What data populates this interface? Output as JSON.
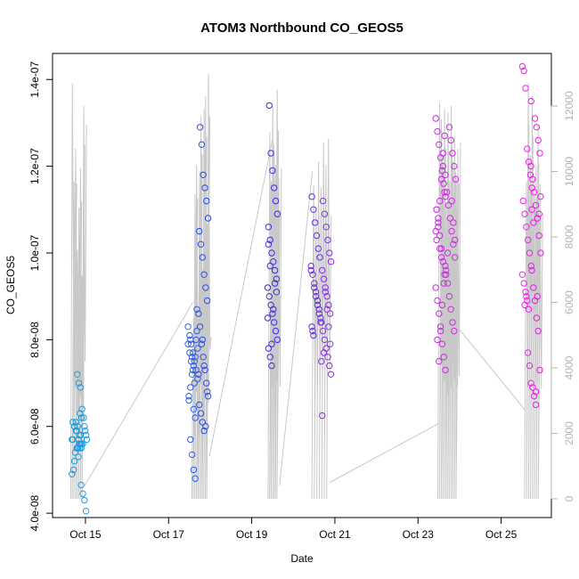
{
  "chart_data": {
    "type": "scatter",
    "title": "ATOM3 Northbound CO_GEOS5",
    "xlabel": "Date",
    "ylabel": "CO_GEOS5",
    "x_ticks": [
      "Oct 15",
      "Oct 17",
      "Oct 19",
      "Oct 21",
      "Oct 23",
      "Oct 25"
    ],
    "y_ticks": [
      "4.0e-08",
      "6.0e-08",
      "8.0e-08",
      "1.0e-07",
      "1.2e-07",
      "1.4e-07"
    ],
    "y2_ticks": [
      "0",
      "2000",
      "4000",
      "6000",
      "8000",
      "10000",
      "12000"
    ],
    "xlim": [
      "2017-10-14T05:00",
      "2017-10-26T05:00"
    ],
    "ylim": [
      3.9e-08,
      1.46e-07
    ],
    "y2lim": [
      0,
      12000
    ],
    "grid": false,
    "series": [
      {
        "marker": "open-circle",
        "points_per_cluster": [
          {
            "date": "2017-10-14T19:00",
            "values": [
              5.7e-08,
              5.8e-08,
              5.6e-08,
              5.5e-08,
              5.9e-08,
              6e-08,
              6.1e-08,
              6.2e-08,
              6.3e-08,
              5.7e-08,
              5.5e-08,
              5.4e-08,
              5e-08,
              4.9e-08,
              5.6e-08,
              5.8e-08,
              6e-08,
              6.1e-08,
              5.2e-08,
              5.7e-08,
              5.6e-08,
              5.5e-08,
              5.3e-08,
              5.9e-08
            ],
            "color": "#1c9ad8"
          },
          {
            "date": "2017-10-14T22:00",
            "values": [
              4.05e-08,
              4.3e-08,
              4.45e-08,
              4.65e-08,
              5.6e-08,
              5.5e-08,
              5.7e-08,
              5.9e-08,
              6.2e-08,
              6.4e-08,
              6.9e-08,
              7e-08,
              7.2e-08,
              5.8e-08,
              6e-08,
              5.6e-08,
              5.5e-08
            ],
            "color": "#239ce3"
          },
          {
            "date": "2017-10-17T14:00",
            "values": [
              4.8e-08,
              5e-08,
              5.35e-08,
              5.7e-08,
              6.7e-08,
              7.1e-08,
              7.3e-08,
              7.5e-08,
              7.7e-08,
              7.9e-08,
              8.1e-08,
              8.3e-08,
              8.7e-08,
              7.6e-08,
              7.4e-08,
              7.2e-08,
              6.9e-08,
              6.6e-08,
              7.8e-08,
              8e-08,
              7e-08,
              7.3e-08,
              7.5e-08,
              7.7e-08,
              7.9e-08,
              8.2e-08,
              6.2e-08,
              6.4e-08,
              7.6e-08,
              8e-08
            ],
            "color": "#2f5fe8"
          },
          {
            "date": "2017-10-17T20:00",
            "values": [
              5.9e-08,
              6.1e-08,
              6.3e-08,
              6.5e-08,
              6.7e-08,
              7e-08,
              7.3e-08,
              7.6e-08,
              7.9e-08,
              8.3e-08,
              8.6e-08,
              8.9e-08,
              9.2e-08,
              9.5e-08,
              9.9e-08,
              1.02e-07,
              1.05e-07,
              1.08e-07,
              1.12e-07,
              1.15e-07,
              1.18e-07,
              1.25e-07,
              1.29e-07,
              7.2e-08,
              6.8e-08,
              6e-08,
              7.4e-08,
              8e-08
            ],
            "color": "#2a4ee6"
          },
          {
            "date": "2017-10-19T12:00",
            "values": [
              7.4e-08,
              7.6e-08,
              7.8e-08,
              8e-08,
              8.2e-08,
              8.4e-08,
              8.6e-08,
              8.8e-08,
              9e-08,
              9.2e-08,
              9.4e-08,
              9.6e-08,
              9.8e-08,
              1e-07,
              1.03e-07,
              1.06e-07,
              1.09e-07,
              1.12e-07,
              1.15e-07,
              1.19e-07,
              1.23e-07,
              1.34e-07,
              8.5e-08,
              9.1e-08,
              9.3e-08,
              8.7e-08,
              7.9e-08,
              9.7e-08,
              1.02e-07
            ],
            "color": "#3b2fe0"
          },
          {
            "date": "2017-10-20T13:00",
            "values": [
              8.1e-08,
              8.3e-08,
              8.5e-08,
              8.7e-08,
              8.9e-08,
              9.1e-08,
              9.3e-08,
              9.5e-08,
              9.7e-08,
              9.9e-08,
              1.01e-07,
              1.04e-07,
              1.07e-07,
              1.1e-07,
              1.13e-07,
              8.4e-08,
              8.6e-08,
              8.8e-08,
              9e-08,
              9.2e-08,
              8.2e-08,
              9.6e-08
            ],
            "color": "#6a2fe0"
          },
          {
            "date": "2017-10-20T19:00",
            "values": [
              6.25e-08,
              7.2e-08,
              7.4e-08,
              7.6e-08,
              7.8e-08,
              8e-08,
              8.2e-08,
              8.4e-08,
              8.6e-08,
              8.8e-08,
              9e-08,
              9.2e-08,
              9.4e-08,
              9.6e-08,
              9.8e-08,
              1e-07,
              1.03e-07,
              1.06e-07,
              1.09e-07,
              1.12e-07,
              7.5e-08,
              7.9e-08,
              8.3e-08,
              8.7e-08,
              9.1e-08,
              7.7e-08
            ],
            "color": "#8b2ee3"
          },
          {
            "date": "2017-10-23T13:00",
            "values": [
              7.3e-08,
              7.6e-08,
              7.9e-08,
              8.2e-08,
              8.6e-08,
              8.9e-08,
              9.2e-08,
              9.5e-08,
              9.8e-08,
              1.01e-07,
              1.04e-07,
              1.07e-07,
              1.1e-07,
              1.13e-07,
              1.16e-07,
              1.19e-07,
              1.22e-07,
              1.25e-07,
              1.28e-07,
              1.31e-07,
              1.27e-07,
              1.23e-07,
              1.17e-07,
              1.12e-07,
              1.08e-07,
              1.03e-07,
              9.7e-08,
              9.3e-08,
              8.8e-08,
              8.3e-08,
              7.5e-08,
              8e-08,
              1.05e-07,
              1.14e-07,
              1.2e-07,
              9.9e-08,
              1.01e-07,
              1.06e-07,
              1.1e-07,
              1.18e-07
            ],
            "color": "#c82ce0"
          },
          {
            "date": "2017-10-23T19:00",
            "values": [
              8.2e-08,
              8.4e-08,
              8.7e-08,
              9e-08,
              9.3e-08,
              9.6e-08,
              9.9e-08,
              1.02e-07,
              1.05e-07,
              1.08e-07,
              1.11e-07,
              1.14e-07,
              1.17e-07,
              1.2e-07,
              1.23e-07,
              1.26e-07,
              1.29e-07,
              1e-07,
              9.5e-08,
              1.03e-07,
              1.07e-07,
              1.12e-07
            ],
            "color": "#d22ce4"
          },
          {
            "date": "2017-10-25T15:00",
            "values": [
              8.7e-08,
              8.9e-08,
              9.1e-08,
              9.3e-08,
              9.5e-08,
              9.7e-08,
              1e-07,
              1.03e-07,
              1.06e-07,
              1.09e-07,
              1.12e-07,
              1.15e-07,
              1.18e-07,
              1.21e-07,
              1.24e-07,
              1.38e-07,
              1.42e-07,
              1.43e-07,
              1.35e-07,
              7.4e-08,
              7.7e-08,
              9e-08,
              8.8e-08
            ],
            "color": "#ee22ec"
          },
          {
            "date": "2017-10-25T20:00",
            "values": [
              6.5e-08,
              6.7e-08,
              6.9e-08,
              7e-08,
              7.3e-08,
              8.2e-08,
              8.5e-08,
              8.9e-08,
              9.2e-08,
              9.6e-08,
              1e-07,
              1.04e-07,
              1.08e-07,
              1.11e-07,
              1.14e-07,
              1.17e-07,
              1.2e-07,
              1.23e-07,
              1.26e-07,
              1.29e-07,
              1.31e-07,
              1.07e-07,
              1.1e-07,
              1.13e-07,
              1.09e-07,
              9e-08,
              6.8e-08
            ],
            "color": "#f01ae8"
          }
        ]
      }
    ],
    "secondary_series": {
      "type": "line",
      "axis": "right",
      "color": "#c8c8c8",
      "flights": [
        {
          "start": "2017-10-14T16:00",
          "end": "2017-10-14T23:30",
          "peaks": [
            12700,
            9700,
            10700,
            7600,
            8900,
            10100,
            6800,
            12000
          ]
        },
        {
          "start": "2017-10-17T14:00",
          "end": "2017-10-17T23:30",
          "peaks": [
            5500,
            9300,
            10200,
            5500,
            10000,
            11700,
            7000,
            11900,
            12300,
            8400,
            13000
          ]
        },
        {
          "start": "2017-10-19T10:00",
          "end": "2017-10-19T16:00",
          "peaks": [
            11200,
            9700,
            12000,
            10500,
            10200,
            12500,
            9800
          ]
        },
        {
          "start": "2017-10-20T11:00",
          "end": "2017-10-20T21:00",
          "peaks": [
            9600,
            8900,
            10300,
            9500,
            10900,
            10200,
            11000
          ]
        },
        {
          "start": "2017-10-23T12:00",
          "end": "2017-10-23T23:30",
          "peaks": [
            12100,
            11600,
            10300,
            11900,
            9000,
            11800,
            9700,
            12000,
            10300,
            11100,
            9800,
            10700
          ]
        },
        {
          "start": "2017-10-25T14:00",
          "end": "2017-10-25T23:00",
          "peaks": [
            9700,
            12700,
            10500,
            12300,
            9800,
            10200,
            11400,
            9600
          ]
        }
      ],
      "connectors": [
        [
          [
            "2017-10-14T23:30",
            400
          ],
          [
            "2017-10-17T14:00",
            6000
          ]
        ],
        [
          [
            "2017-10-17T23:30",
            1300
          ],
          [
            "2017-10-19T12:00",
            11000
          ]
        ],
        [
          [
            "2017-10-19T16:00",
            400
          ],
          [
            "2017-10-20T11:00",
            10000
          ]
        ],
        [
          [
            "2017-10-20T21:00",
            500
          ],
          [
            "2017-10-23T12:00",
            2300
          ]
        ],
        [
          [
            "2017-10-23T23:30",
            5200
          ],
          [
            "2017-10-25T14:00",
            2700
          ]
        ]
      ]
    }
  }
}
